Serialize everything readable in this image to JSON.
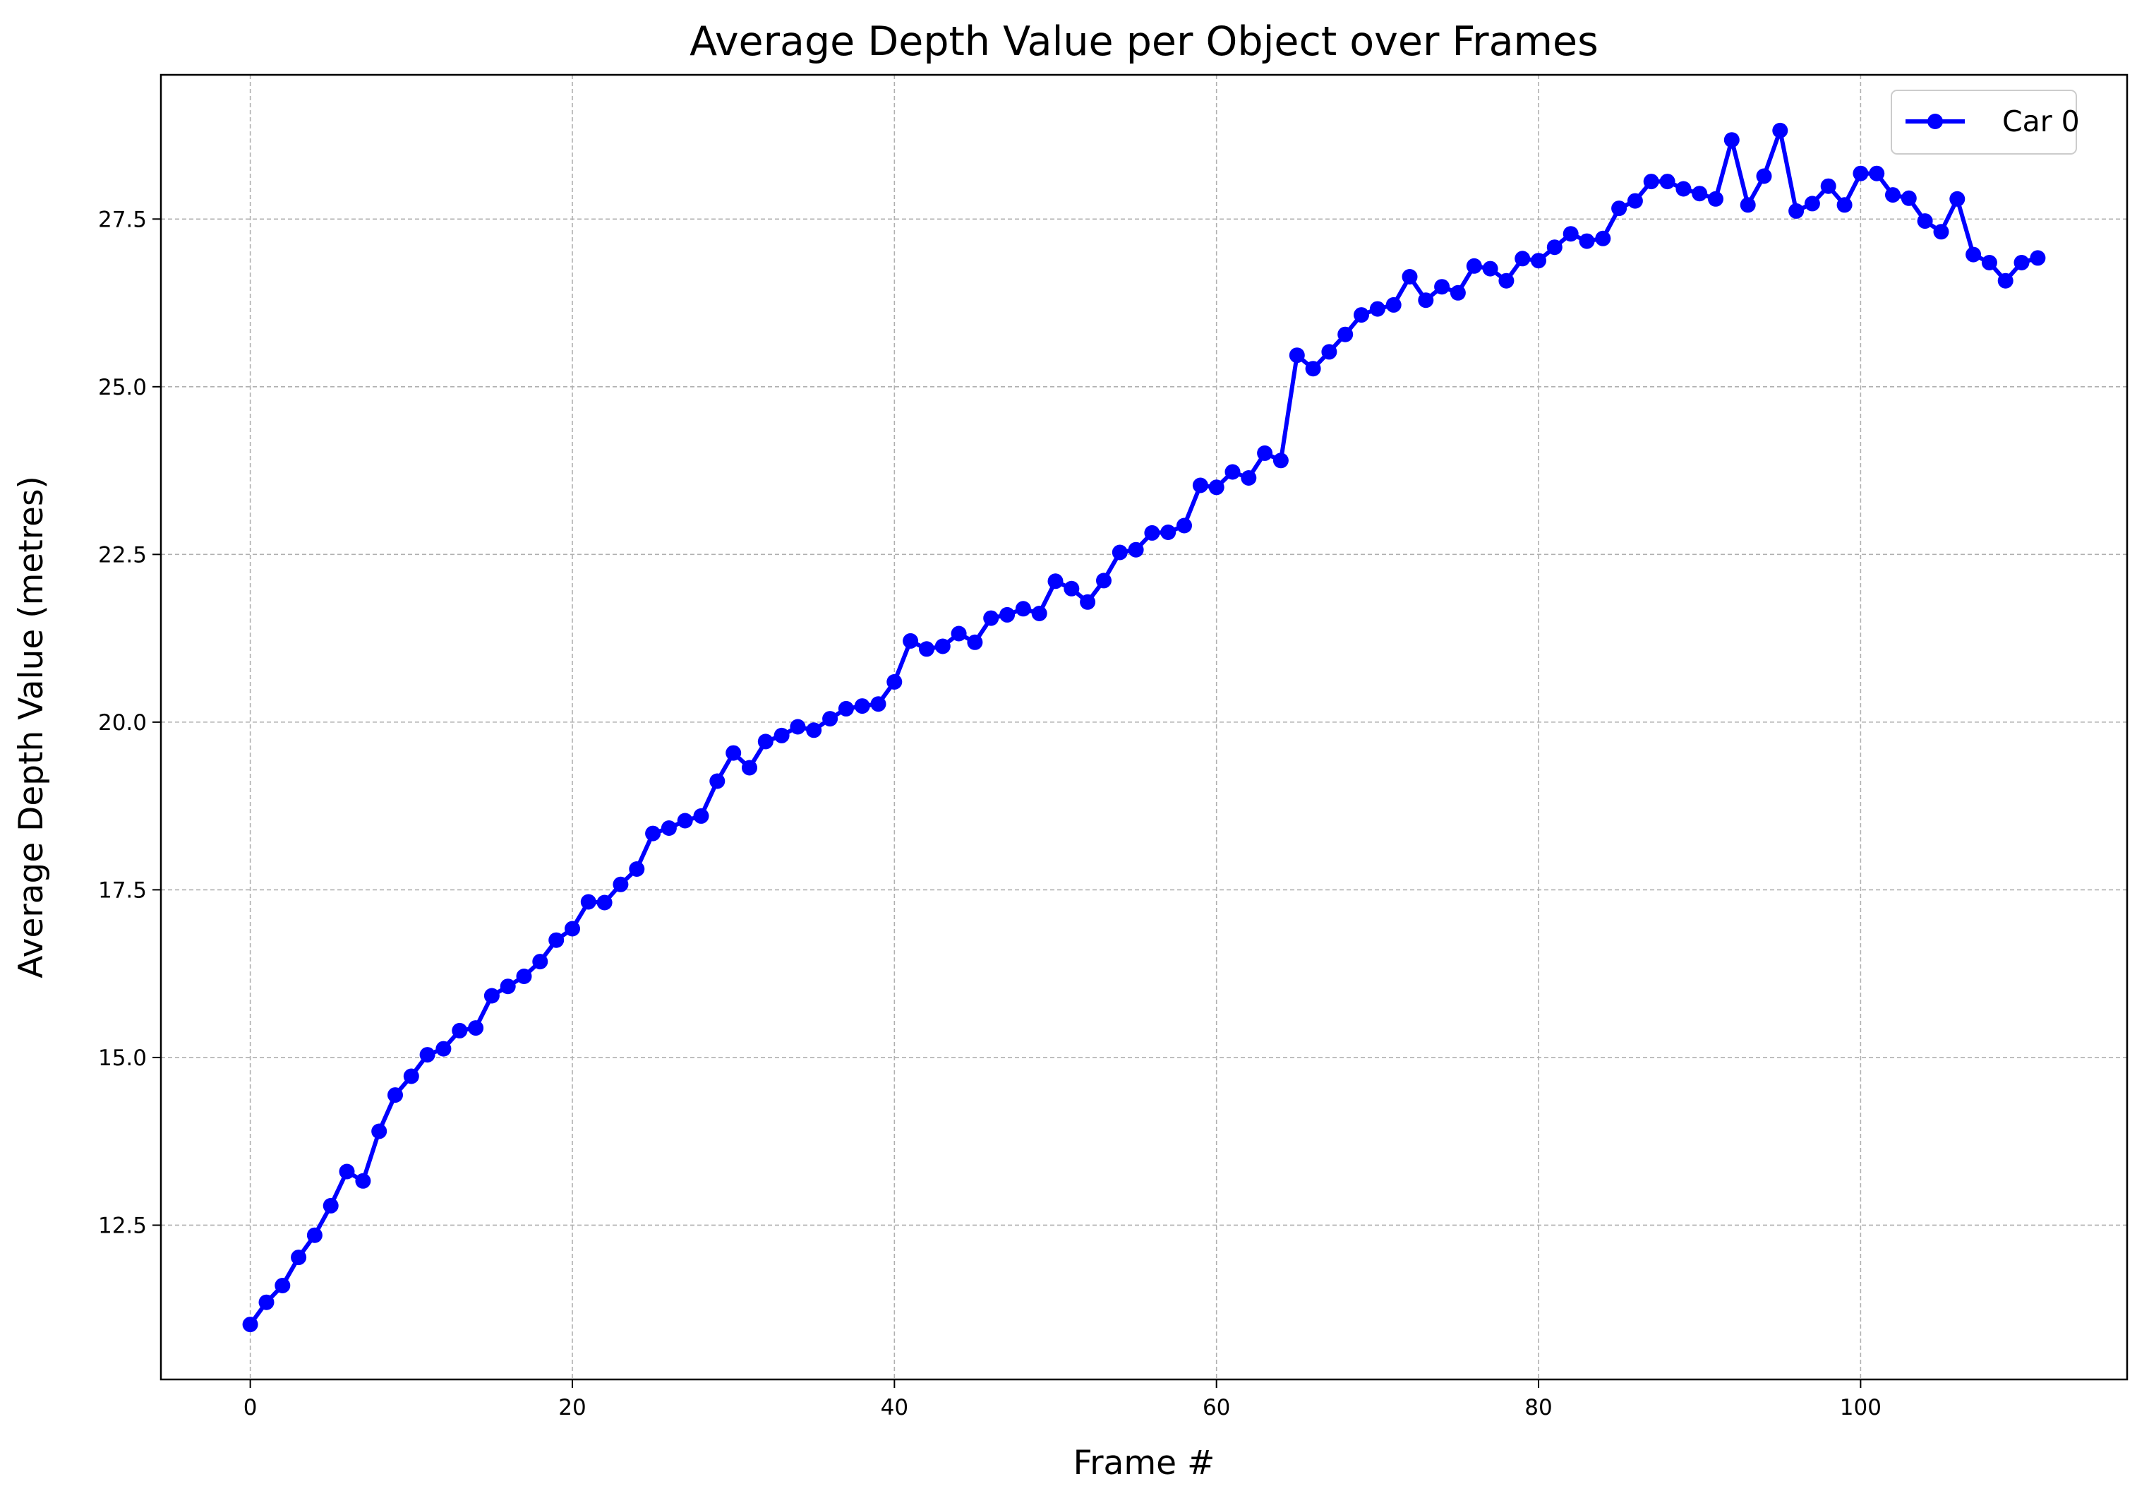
{
  "chart_data": {
    "type": "line",
    "title": "Average Depth Value per Object over Frames",
    "xlabel": "Frame #",
    "ylabel": "Average Depth Value (metres)",
    "xlim": [
      -5.55,
      116.55
    ],
    "ylim": [
      10.2,
      29.65
    ],
    "xticks": [
      0,
      20,
      40,
      60,
      80,
      100
    ],
    "xtick_labels": [
      "0",
      "20",
      "40",
      "60",
      "80",
      "100"
    ],
    "yticks": [
      12.5,
      15.0,
      17.5,
      20.0,
      22.5,
      25.0,
      27.5
    ],
    "ytick_labels": [
      "12.5",
      "15.0",
      "17.5",
      "20.0",
      "22.5",
      "25.0",
      "27.5"
    ],
    "grid": true,
    "legend_position": "upper right",
    "series": [
      {
        "name": "Car 0",
        "color": "#0000ff",
        "marker": "circle",
        "x": [
          0,
          1,
          2,
          3,
          4,
          5,
          6,
          7,
          8,
          9,
          10,
          11,
          12,
          13,
          14,
          15,
          16,
          17,
          18,
          19,
          20,
          21,
          22,
          23,
          24,
          25,
          26,
          27,
          28,
          29,
          30,
          31,
          32,
          33,
          34,
          35,
          36,
          37,
          38,
          39,
          40,
          41,
          42,
          43,
          44,
          45,
          46,
          47,
          48,
          49,
          50,
          51,
          52,
          53,
          54,
          55,
          56,
          57,
          58,
          59,
          60,
          61,
          62,
          63,
          64,
          65,
          66,
          67,
          68,
          69,
          70,
          71,
          72,
          73,
          74,
          75,
          76,
          77,
          78,
          79,
          80,
          81,
          82,
          83,
          84,
          85,
          86,
          87,
          88,
          89,
          90,
          91,
          92,
          93,
          94,
          95,
          96,
          97,
          98,
          99,
          100,
          101,
          102,
          103,
          104,
          105,
          106,
          107,
          108,
          109,
          110,
          111
        ],
        "values": [
          11.02,
          11.35,
          11.6,
          12.02,
          12.35,
          12.79,
          13.3,
          13.16,
          13.9,
          14.44,
          14.72,
          15.04,
          15.13,
          15.4,
          15.44,
          15.92,
          16.06,
          16.21,
          16.43,
          16.75,
          16.92,
          17.32,
          17.31,
          17.58,
          17.81,
          18.34,
          18.42,
          18.53,
          18.6,
          19.12,
          19.54,
          19.32,
          19.71,
          19.8,
          19.93,
          19.88,
          20.05,
          20.2,
          20.24,
          20.27,
          20.6,
          21.21,
          21.09,
          21.13,
          21.32,
          21.19,
          21.55,
          21.6,
          21.69,
          21.62,
          22.1,
          21.99,
          21.79,
          22.11,
          22.53,
          22.57,
          22.82,
          22.83,
          22.93,
          23.53,
          23.5,
          23.73,
          23.64,
          24.01,
          23.9,
          25.47,
          25.27,
          25.52,
          25.78,
          26.07,
          26.16,
          26.22,
          26.64,
          26.29,
          26.49,
          26.4,
          26.8,
          26.76,
          26.58,
          26.91,
          26.88,
          27.08,
          27.28,
          27.17,
          27.21,
          27.66,
          27.77,
          28.06,
          28.06,
          27.95,
          27.88,
          27.8,
          28.68,
          27.71,
          28.14,
          28.82,
          27.62,
          27.73,
          27.99,
          27.71,
          28.18,
          28.18,
          27.86,
          27.81,
          27.47,
          27.31,
          27.8,
          26.97,
          26.85,
          26.58,
          26.85,
          26.92
        ]
      }
    ]
  }
}
